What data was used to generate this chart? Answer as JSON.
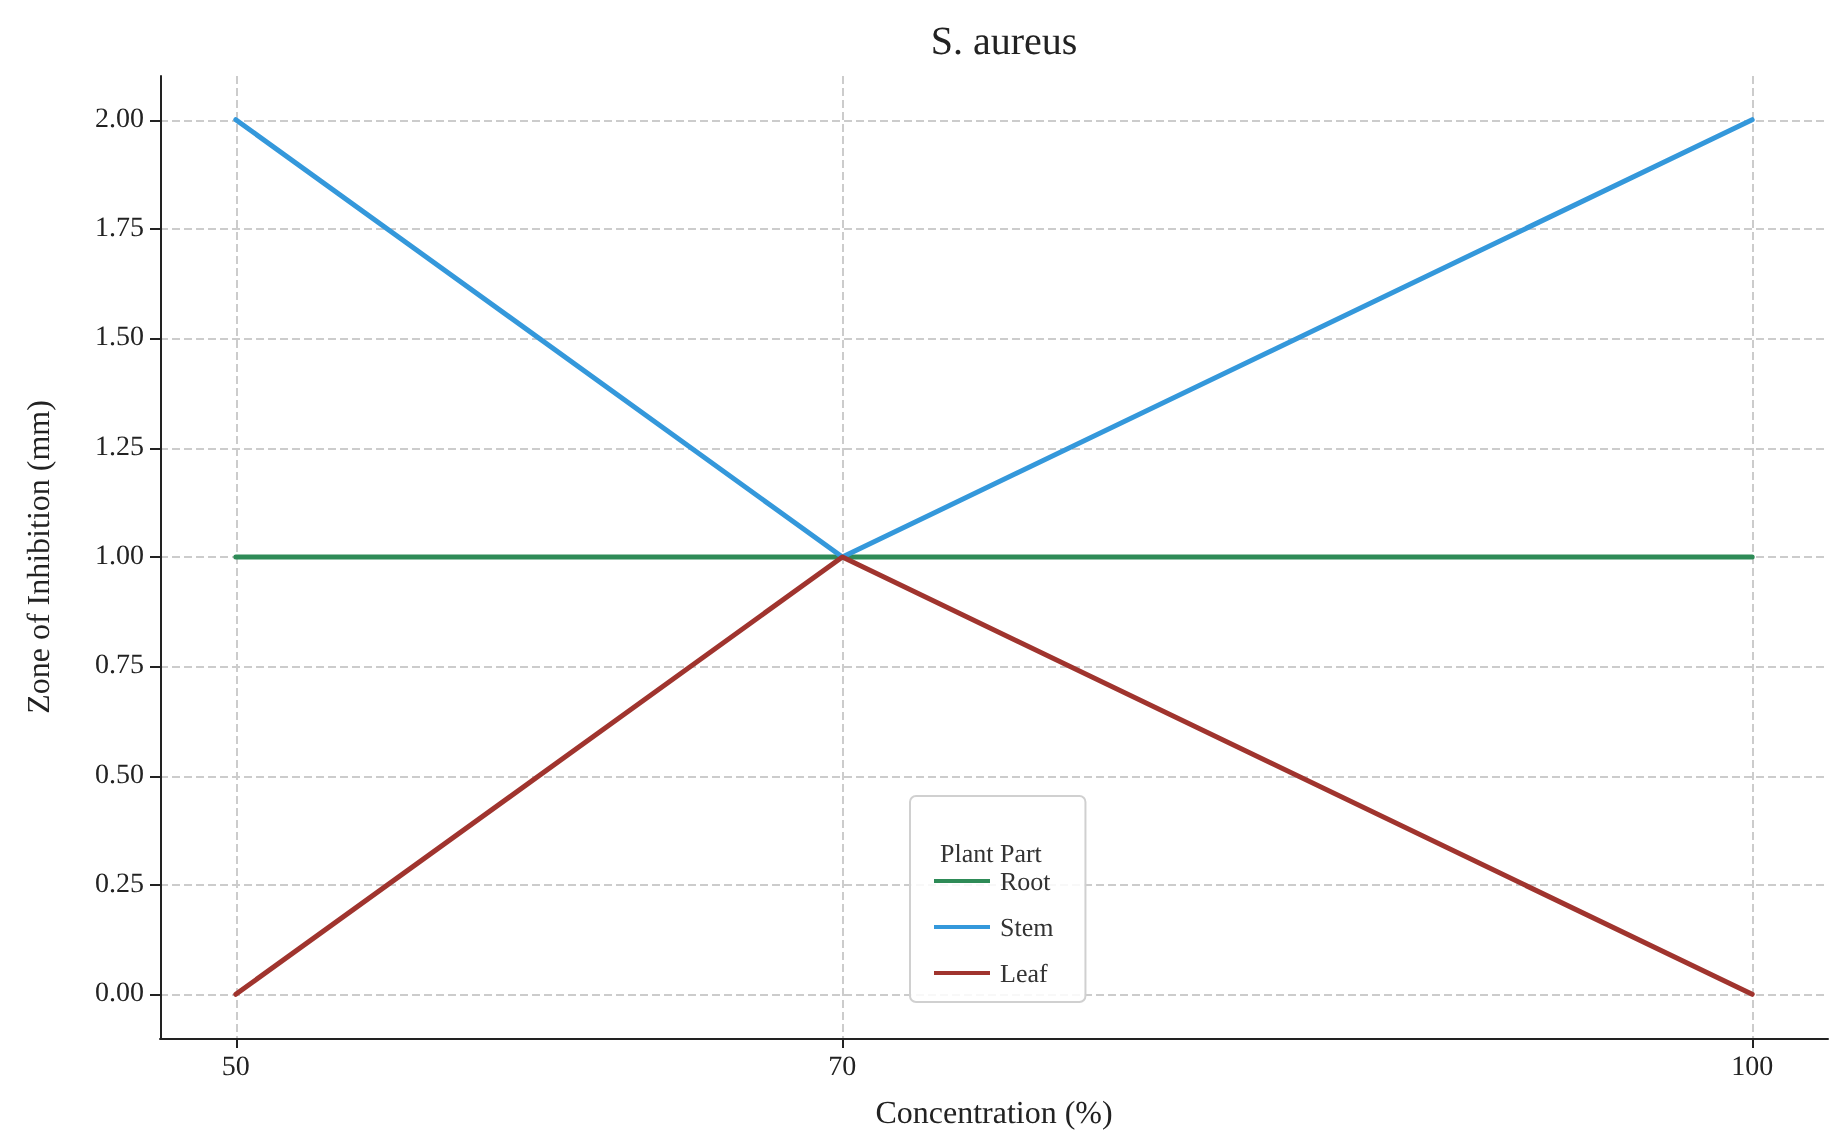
{
  "chart_data": {
    "type": "line",
    "title": "S. aureus",
    "xlabel": "Concentration (%)",
    "ylabel": "Zone of Inhibition (mm)",
    "legend_title": "Plant Part",
    "x": [
      50,
      70,
      100
    ],
    "series": [
      {
        "name": "Root",
        "color": "#2e8b57",
        "values": [
          1,
          1,
          1
        ]
      },
      {
        "name": "Stem",
        "color": "#3498db",
        "values": [
          2,
          1,
          2
        ]
      },
      {
        "name": "Leaf",
        "color": "#a0342e",
        "values": [
          0,
          1,
          0
        ]
      }
    ],
    "xlim": [
      47.5,
      102.5
    ],
    "ylim": [
      -0.1,
      2.1
    ],
    "xticks": [
      50,
      70,
      100
    ],
    "yticks": [
      {
        "value": 0,
        "label": "0.00"
      },
      {
        "value": 0.25,
        "label": "0.25"
      },
      {
        "value": 0.5,
        "label": "0.50"
      },
      {
        "value": 0.75,
        "label": "0.75"
      },
      {
        "value": 1,
        "label": "1.00"
      },
      {
        "value": 1.25,
        "label": "1.25"
      },
      {
        "value": 1.5,
        "label": "1.50"
      },
      {
        "value": 1.75,
        "label": "1.75"
      },
      {
        "value": 2,
        "label": "2.00"
      }
    ],
    "grid": true,
    "legend": "bottom",
    "line_style": "solid"
  }
}
